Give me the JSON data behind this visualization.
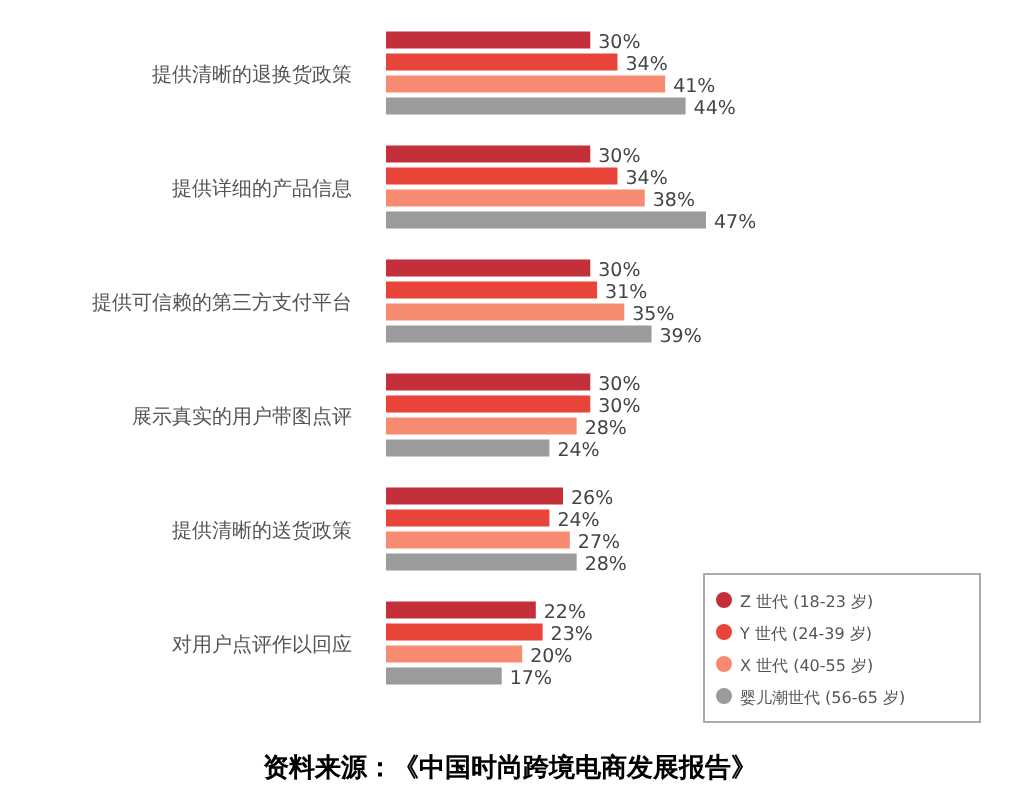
{
  "chart_data": {
    "type": "bar",
    "orientation": "horizontal",
    "categories": [
      "提供清晰的退换货政策",
      "提供详细的产品信息",
      "提供可信赖的第三方支付平台",
      "展示真实的用户带图点评",
      "提供清晰的送货政策",
      "对用户点评作以回应"
    ],
    "series": [
      {
        "name": "Z 世代 (18-23 岁)",
        "color": "#c4303a",
        "values": [
          30,
          30,
          30,
          30,
          26,
          22
        ],
        "value_labels": [
          "30%",
          "30%",
          "30%",
          "30%",
          "26%",
          "22%"
        ]
      },
      {
        "name": "Y 世代 (24-39 岁)",
        "color": "#e8443a",
        "values": [
          34,
          34,
          31,
          30,
          24,
          23
        ],
        "value_labels": [
          "34%",
          "34%",
          "31%",
          "30%",
          "24%",
          "23%"
        ]
      },
      {
        "name": "X 世代 (40-55 岁)",
        "color": "#f78b72",
        "values": [
          41,
          38,
          35,
          28,
          27,
          20
        ],
        "value_labels": [
          "41%",
          "38%",
          "35%",
          "28%",
          "27%",
          "20%"
        ]
      },
      {
        "name": "婴儿潮世代 (56-65 岁)",
        "color": "#9b9b9b",
        "values": [
          44,
          47,
          39,
          24,
          28,
          17
        ],
        "value_labels": [
          "44%",
          "47%",
          "39%",
          "24%",
          "28%",
          "17%"
        ]
      }
    ],
    "legend": "bottom right",
    "annotations": [
      "资料来源：《中国时尚跨境电商发展报告》"
    ]
  }
}
